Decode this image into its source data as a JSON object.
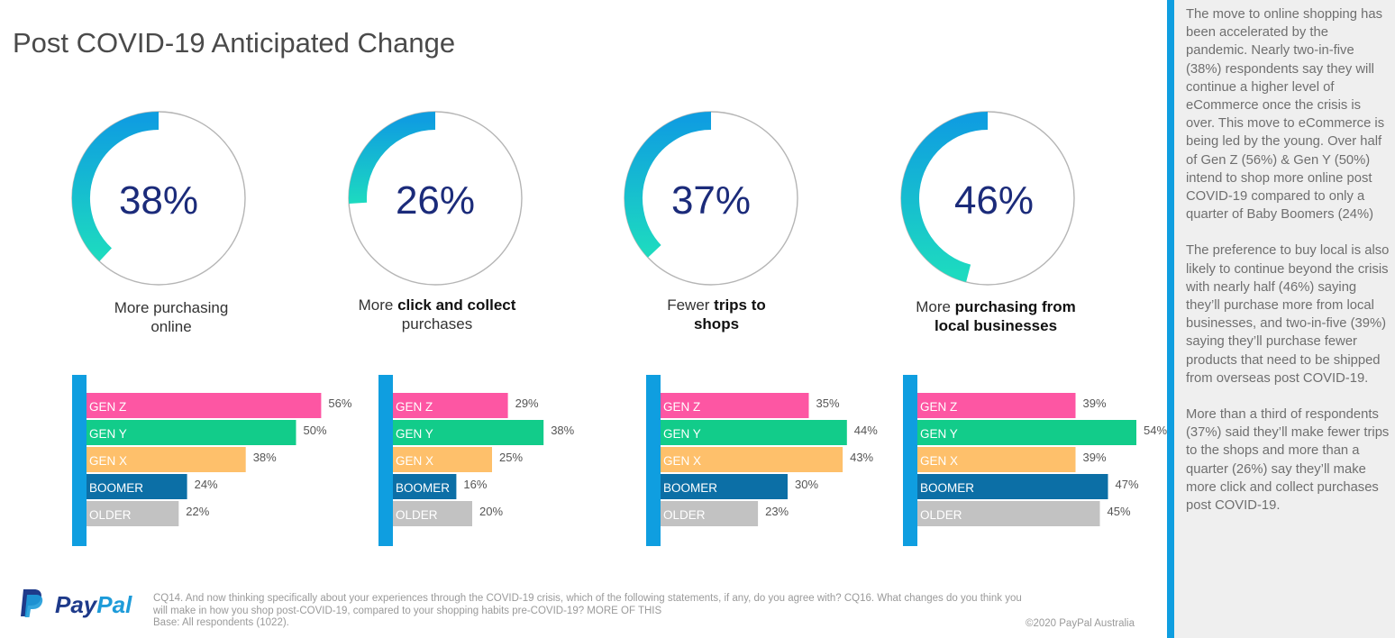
{
  "title": "Post COVID-19 Anticipated Change",
  "colors": {
    "gen_z": "#fd56a3",
    "gen_y": "#12cc8a",
    "gen_x": "#fec06b",
    "boomer": "#0c6fa6",
    "older": "#c2c2c2",
    "accent_blue": "#0f9ee0",
    "pct_text": "#1b2b7a"
  },
  "chart_data": [
    {
      "type": "donut",
      "value": 38,
      "value_label": "38%",
      "label_plain_1": "More purchasing",
      "label_bold_1": "",
      "label_plain_2": "online",
      "label_bold_2": "",
      "bars": {
        "type": "bar",
        "categories": [
          "GEN Z",
          "GEN Y",
          "GEN X",
          "BOOMER",
          "OLDER"
        ],
        "values": [
          56,
          50,
          38,
          24,
          22
        ],
        "value_labels": [
          "56%",
          "50%",
          "38%",
          "24%",
          "22%"
        ]
      }
    },
    {
      "type": "donut",
      "value": 26,
      "value_label": "26%",
      "label_plain_1": "More ",
      "label_bold_1": "click and collect",
      "label_plain_2": "purchases",
      "label_bold_2": "",
      "bars": {
        "type": "bar",
        "categories": [
          "GEN Z",
          "GEN Y",
          "GEN X",
          "BOOMER",
          "OLDER"
        ],
        "values": [
          29,
          38,
          25,
          16,
          20
        ],
        "value_labels": [
          "29%",
          "38%",
          "25%",
          "16%",
          "20%"
        ]
      }
    },
    {
      "type": "donut",
      "value": 37,
      "value_label": "37%",
      "label_plain_1": "Fewer ",
      "label_bold_1": "trips to",
      "label_plain_2": "",
      "label_bold_2": "shops",
      "bars": {
        "type": "bar",
        "categories": [
          "GEN Z",
          "GEN Y",
          "GEN X",
          "BOOMER",
          "OLDER"
        ],
        "values": [
          35,
          44,
          43,
          30,
          23
        ],
        "value_labels": [
          "35%",
          "44%",
          "43%",
          "30%",
          "23%"
        ]
      }
    },
    {
      "type": "donut",
      "value": 46,
      "value_label": "46%",
      "label_plain_1": "More ",
      "label_bold_1": "purchasing from",
      "label_plain_2": "",
      "label_bold_2": "local businesses",
      "bars": {
        "type": "bar",
        "categories": [
          "GEN Z",
          "GEN Y",
          "GEN X",
          "BOOMER",
          "OLDER"
        ],
        "values": [
          39,
          54,
          39,
          47,
          45
        ],
        "value_labels": [
          "39%",
          "54%",
          "39%",
          "47%",
          "45%"
        ]
      }
    }
  ],
  "panel": {
    "para1": "The move to online shopping has been accelerated by the pandemic.  Nearly two-in-five (38%) respondents say they will continue a higher level of eCommerce once the crisis is over.  This move to eCommerce is being led by the young.  Over half of Gen Z (56%) & Gen Y (50%) intend to shop more online post COVID-19 compared to only a quarter of Baby Boomers (24%)",
    "para2": "The preference to buy local is also likely to continue beyond the crisis with nearly half (46%) saying they’ll purchase more from local businesses, and two-in-five (39%) saying they’ll purchase fewer products that need to be shipped from overseas post COVID-19.",
    "para3": "More than a third of respondents (37%) said they’ll make fewer trips to the shops and more than a quarter (26%) say they’ll make more click and collect purchases post COVID-19."
  },
  "footer": {
    "brand_pay": "Pay",
    "brand_pal": "Pal",
    "note_line1": "CQ14. And now thinking specifically about your experiences through the COVID-19 crisis, which of the following statements, if any, do you agree with? CQ16. What changes do you think you",
    "note_line2": "will make in how you shop post-COVID-19, compared to your shopping habits pre-COVID-19? MORE OF THIS",
    "note_line3": "Base: All respondents (1022).",
    "copyright": "©2020 PayPal Australia"
  }
}
